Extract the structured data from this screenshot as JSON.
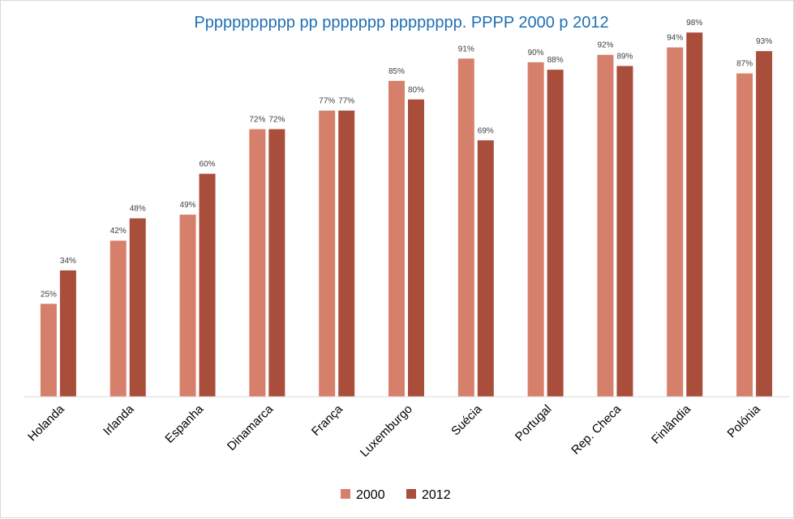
{
  "chart_data": {
    "type": "bar",
    "title": "Ppppppppppp pp ppppppp pppppppp. PPPP 2000 p 2012",
    "categories": [
      "Holanda",
      "Irlanda",
      "Espanha",
      "Dinamarca",
      "França",
      "Luxemburgo",
      "Suécia",
      "Portugal",
      "Rep. Checa",
      "Finlândia",
      "Polónia"
    ],
    "series": [
      {
        "name": "2000",
        "values": [
          0.25,
          0.42,
          0.49,
          0.72,
          0.77,
          0.85,
          0.91,
          0.9,
          0.92,
          0.94,
          0.87
        ],
        "labels": [
          "25%",
          "42%",
          "49%",
          "72%",
          "77%",
          "85%",
          "91%",
          "90%",
          "92%",
          "94%",
          "87%"
        ]
      },
      {
        "name": "2012",
        "values": [
          0.34,
          0.48,
          0.6,
          0.72,
          0.77,
          0.8,
          0.69,
          0.88,
          0.89,
          0.98,
          0.93
        ],
        "labels": [
          "34%",
          "48%",
          "60%",
          "72%",
          "77%",
          "80%",
          "69%",
          "88%",
          "89%",
          "98%",
          "93%"
        ]
      }
    ],
    "ylim": [
      0,
      1
    ],
    "gridlines": false,
    "show_y_axis": false,
    "legend_position": "bottom",
    "colors": {
      "series_2000": "#d6806b",
      "series_2012": "#aa4e3c",
      "title": "#1f6fb5",
      "axis_line": "#d9d9d9",
      "data_label": "#404040"
    }
  }
}
